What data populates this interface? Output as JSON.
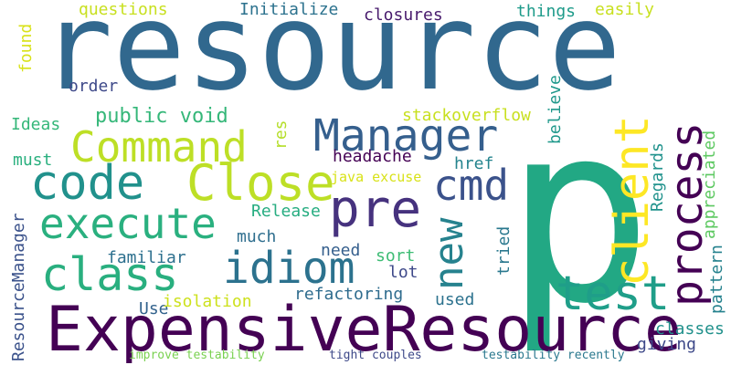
{
  "words": [
    {
      "text": "resource",
      "color": "#31688e"
    },
    {
      "text": "p",
      "color": "#22a884"
    },
    {
      "text": "ExpensiveResource",
      "color": "#440154"
    },
    {
      "text": "Command",
      "color": "#bddf26"
    },
    {
      "text": "Manager",
      "color": "#355f8d"
    },
    {
      "text": "Close",
      "color": "#bddf26"
    },
    {
      "text": "code",
      "color": "#21918c"
    },
    {
      "text": "execute",
      "color": "#2ab07f"
    },
    {
      "text": "class",
      "color": "#29af7f"
    },
    {
      "text": "idiom",
      "color": "#2c728e"
    },
    {
      "text": "pre",
      "color": "#46327e"
    },
    {
      "text": "cmd",
      "color": "#3b528b"
    },
    {
      "text": "test",
      "color": "#1f9e89"
    },
    {
      "text": "new",
      "color": "#26828e"
    },
    {
      "text": "client",
      "color": "#fde725"
    },
    {
      "text": "process",
      "color": "#440154"
    },
    {
      "text": "questions",
      "color": "#c8e020"
    },
    {
      "text": "Initialize",
      "color": "#2c728e"
    },
    {
      "text": "closures",
      "color": "#481b6d"
    },
    {
      "text": "things",
      "color": "#1e9b8a"
    },
    {
      "text": "easily",
      "color": "#c8e020"
    },
    {
      "text": "found",
      "color": "#d8e219"
    },
    {
      "text": "order",
      "color": "#3e4989"
    },
    {
      "text": "public void",
      "color": "#35b779"
    },
    {
      "text": "stackoverflow",
      "color": "#c8e020"
    },
    {
      "text": "Ideas",
      "color": "#35b779"
    },
    {
      "text": "res",
      "color": "#b5de2b"
    },
    {
      "text": "headache",
      "color": "#440154"
    },
    {
      "text": "must",
      "color": "#2ab07f"
    },
    {
      "text": "java excuse",
      "color": "#d8e219"
    },
    {
      "text": "href",
      "color": "#25848e"
    },
    {
      "text": "believe",
      "color": "#1f988b"
    },
    {
      "text": "Regards",
      "color": "#20928c"
    },
    {
      "text": "appreciated",
      "color": "#5ec962"
    },
    {
      "text": "Release",
      "color": "#27ad81"
    },
    {
      "text": "much",
      "color": "#2e6e8e"
    },
    {
      "text": "familiar",
      "color": "#2d708e"
    },
    {
      "text": "need",
      "color": "#355f8d"
    },
    {
      "text": "sort",
      "color": "#3dbc74"
    },
    {
      "text": "tried",
      "color": "#2a788e"
    },
    {
      "text": "lot",
      "color": "#3e4989"
    },
    {
      "text": "pattern",
      "color": "#26828e"
    },
    {
      "text": "ResourceManager",
      "color": "#3b528b"
    },
    {
      "text": "Use",
      "color": "#33638d"
    },
    {
      "text": "isolation",
      "color": "#cde11d"
    },
    {
      "text": "refactoring",
      "color": "#2f6c8e"
    },
    {
      "text": "used",
      "color": "#2c728e"
    },
    {
      "text": "classes",
      "color": "#21918c"
    },
    {
      "text": "giving",
      "color": "#3e4989"
    },
    {
      "text": "improve testability",
      "color": "#7ad151"
    },
    {
      "text": "tight couples",
      "color": "#3e4989"
    },
    {
      "text": "testability recently",
      "color": "#2a788e"
    }
  ]
}
